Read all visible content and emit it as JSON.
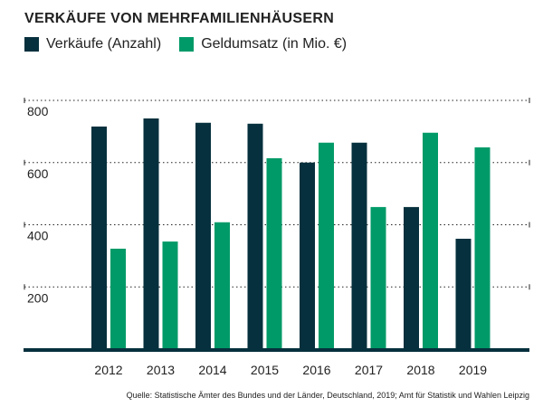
{
  "chart_data": {
    "type": "bar",
    "title": "VERKÄUFE VON MEHRFAMILIENHÄUSERN",
    "categories": [
      "2012",
      "2013",
      "2014",
      "2015",
      "2016",
      "2017",
      "2018",
      "2019"
    ],
    "series": [
      {
        "name": "Verkäufe (Anzahl)",
        "color": "#06303d",
        "values": [
          716,
          742,
          728,
          725,
          600,
          664,
          457,
          355
        ]
      },
      {
        "name": "Geldumsatz (in Mio. €)",
        "color": "#009a68",
        "values": [
          323,
          346,
          408,
          614,
          664,
          457,
          696,
          649
        ]
      }
    ],
    "yticks": [
      200,
      400,
      600,
      800
    ],
    "ytick_labels": [
      "200",
      "400",
      "600",
      "800"
    ],
    "ylim": [
      0,
      800
    ],
    "grid": true,
    "legend": "top-left",
    "source": "Quelle: Statistische Ämter des Bundes und der Länder, Deutschland, 2019; Amt für Statistik und Wahlen Leipzig"
  }
}
